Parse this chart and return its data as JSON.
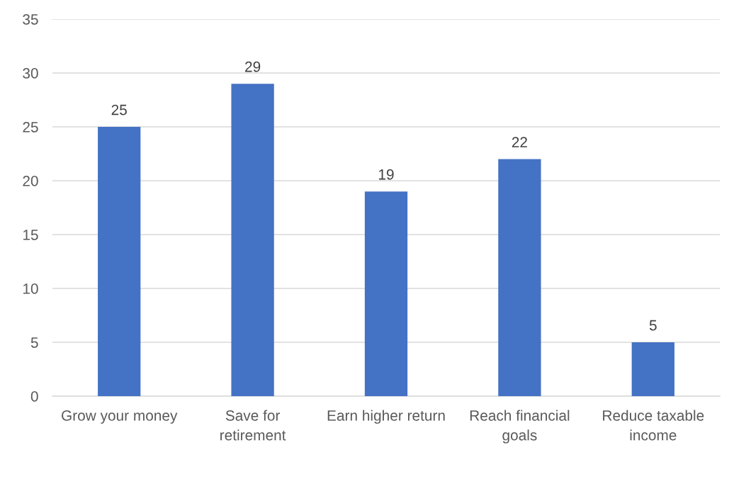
{
  "chart_data": {
    "type": "bar",
    "categories": [
      "Grow your money",
      "Save for\nretirement",
      "Earn higher return",
      "Reach financial\ngoals",
      "Reduce taxable\nincome"
    ],
    "values": [
      25,
      29,
      19,
      22,
      5
    ],
    "color": "#4472c4",
    "ylim": [
      0,
      35
    ],
    "yticks": [
      0,
      5,
      10,
      15,
      20,
      25,
      30,
      35
    ],
    "grid": "y",
    "data_labels": true,
    "legend": false
  }
}
